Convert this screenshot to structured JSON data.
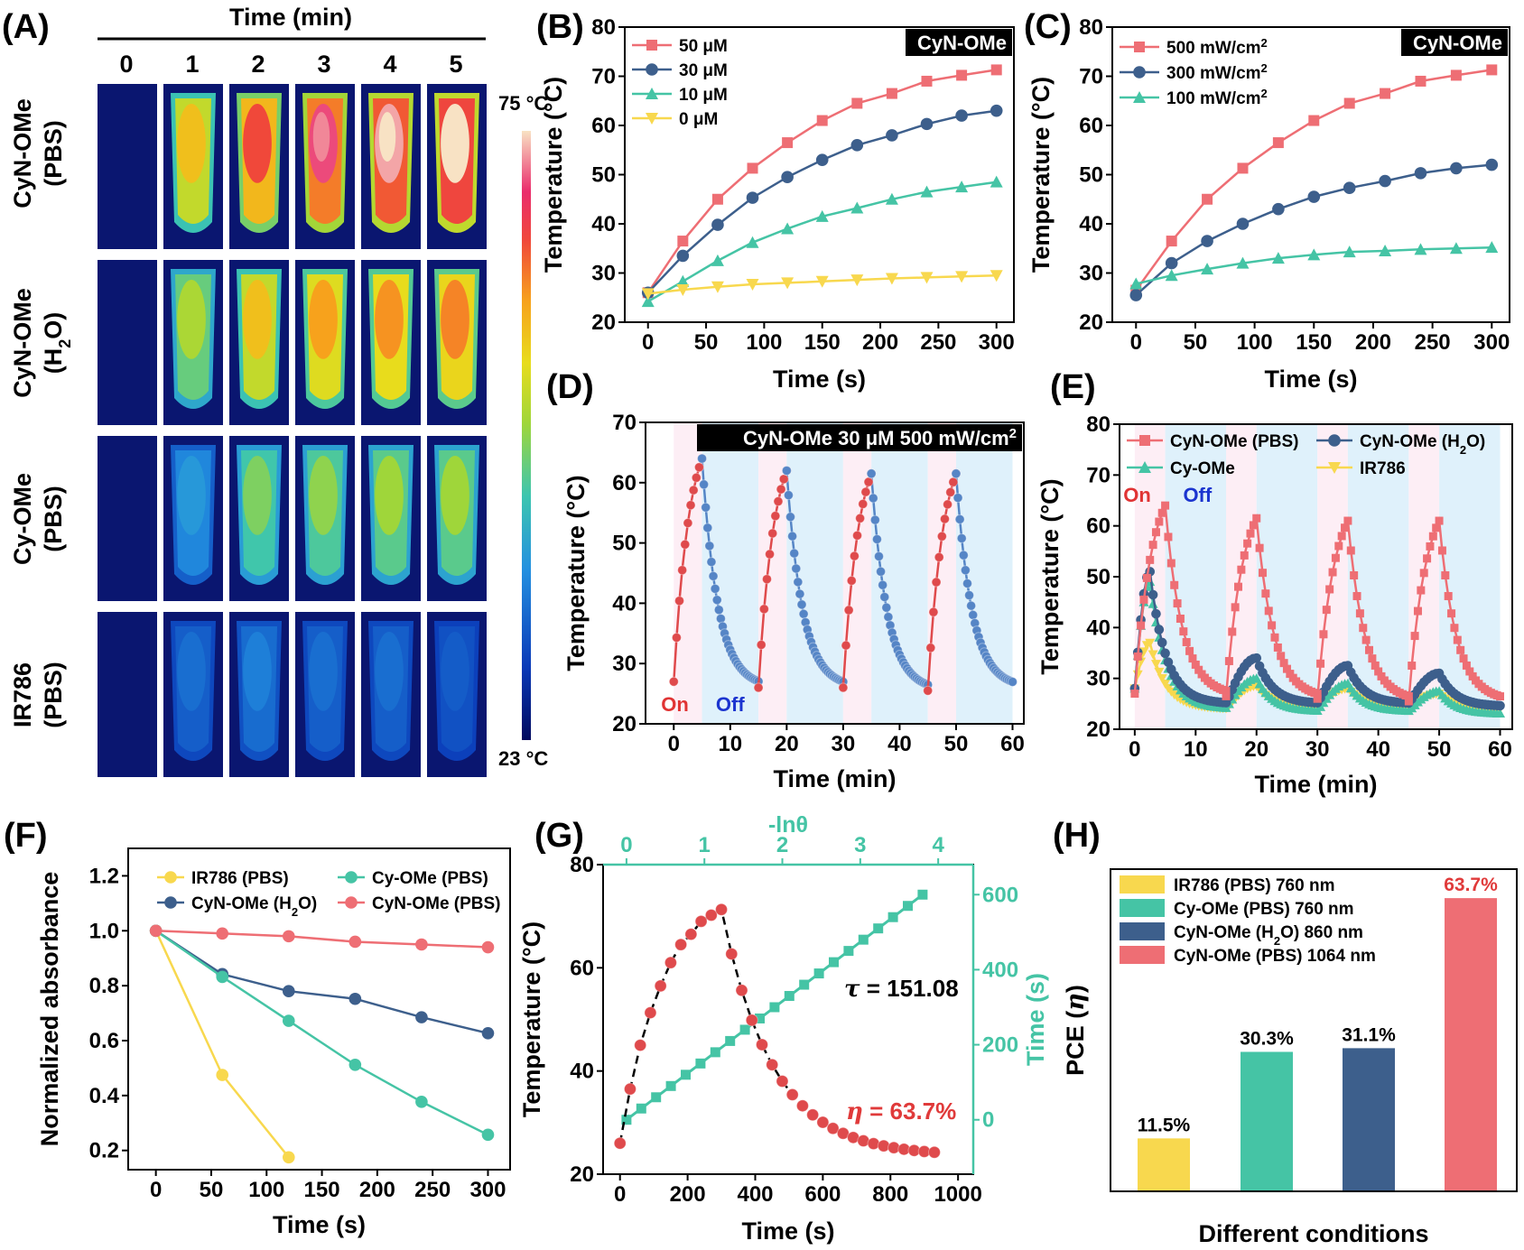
{
  "colors": {
    "red": "#ee6e74",
    "navy": "#3d5f8c",
    "teal": "#45c4a5",
    "yellow": "#f8d84e",
    "redDot": "#df4a4c",
    "blueDot": "#5585c6",
    "pinkBg": "#fdeef5",
    "blueBg": "#dff1fb",
    "eta": "#e03a3a",
    "offBlue": "#1b34cf",
    "onRed": "#e03434"
  },
  "panels": {
    "A": {
      "label": "(A)",
      "header": "Time (min)",
      "columns": [
        "0",
        "1",
        "2",
        "3",
        "4",
        "5"
      ],
      "rows": [
        {
          "line1": "CyN-OMe",
          "line2": "(PBS)",
          "line2_sub": "",
          "line2_end": "",
          "temps": [
            23,
            55,
            64,
            70,
            73,
            75
          ]
        },
        {
          "line1": "CyN-OMe",
          "line2": "(H",
          "line2_sub": "2",
          "line2_end": "O)",
          "temps": [
            25,
            47,
            55,
            58,
            59,
            60
          ]
        },
        {
          "line1": "Cy-OMe",
          "line2": "(PBS)",
          "line2_sub": "",
          "line2_end": "",
          "temps": [
            24,
            34,
            44,
            45,
            46,
            46
          ]
        },
        {
          "line1": "IR786",
          "line2": "(PBS)",
          "line2_sub": "",
          "line2_end": "",
          "temps": [
            24,
            31,
            32,
            31,
            31,
            30
          ]
        }
      ],
      "colorbar": {
        "max_label": "75 °C",
        "min_label": "23 °C",
        "max": 75,
        "min": 23
      }
    },
    "H_legend": {
      "s1": "IR786 (PBS) 760 nm",
      "s2": "Cy-OMe (PBS) 760 nm",
      "s3a": "CyN-OMe (H",
      "s3sub": "2",
      "s3b": "O)  860 nm",
      "s4": "CyN-OMe (PBS) 1064 nm"
    }
  },
  "chart_data": [
    {
      "id": "B",
      "type": "line",
      "panel_label": "(B)",
      "badge": "CyN-OMe",
      "xlabel": "Time (s)",
      "ylabel": "Temperature (°C)",
      "xlim": [
        -20,
        315
      ],
      "ylim": [
        20,
        80
      ],
      "xticks": [
        0,
        50,
        100,
        150,
        200,
        250,
        300
      ],
      "yticks": [
        20,
        30,
        40,
        50,
        60,
        70,
        80
      ],
      "x": [
        0,
        30,
        60,
        90,
        120,
        150,
        180,
        210,
        240,
        270,
        300
      ],
      "series": [
        {
          "name": "50 μM",
          "color": "red",
          "marker": "square",
          "values": [
            26.0,
            36.5,
            45.0,
            51.3,
            56.5,
            61.0,
            64.5,
            66.5,
            69.0,
            70.2,
            71.3
          ]
        },
        {
          "name": "30 μM",
          "color": "navy",
          "marker": "circle",
          "values": [
            26.0,
            33.5,
            39.8,
            45.3,
            49.5,
            53.0,
            56.0,
            58.0,
            60.3,
            62.0,
            63.0
          ]
        },
        {
          "name": "10 μM",
          "color": "teal",
          "marker": "triangle",
          "values": [
            24.2,
            28.3,
            32.5,
            36.2,
            39.0,
            41.5,
            43.2,
            45.0,
            46.5,
            47.5,
            48.5
          ]
        },
        {
          "name": "0 μM",
          "color": "yellow",
          "marker": "tridown",
          "values": [
            25.8,
            26.6,
            27.2,
            27.7,
            28.0,
            28.3,
            28.6,
            28.9,
            29.1,
            29.3,
            29.5
          ]
        }
      ]
    },
    {
      "id": "C",
      "type": "line",
      "panel_label": "(C)",
      "badge": "CyN-OMe",
      "xlabel": "Time (s)",
      "ylabel": "Temperature (°C)",
      "xlim": [
        -20,
        315
      ],
      "ylim": [
        20,
        80
      ],
      "xticks": [
        0,
        50,
        100,
        150,
        200,
        250,
        300
      ],
      "yticks": [
        20,
        30,
        40,
        50,
        60,
        70,
        80
      ],
      "x": [
        0,
        30,
        60,
        90,
        120,
        150,
        180,
        210,
        240,
        270,
        300
      ],
      "series": [
        {
          "name": "500 mW/cm",
          "sup": "2",
          "color": "red",
          "marker": "square",
          "values": [
            26.5,
            36.5,
            45.0,
            51.3,
            56.5,
            61.0,
            64.5,
            66.5,
            69.0,
            70.2,
            71.3
          ]
        },
        {
          "name": "300 mW/cm",
          "sup": "2",
          "color": "navy",
          "marker": "circle",
          "values": [
            25.5,
            32.0,
            36.5,
            40.0,
            43.0,
            45.5,
            47.3,
            48.7,
            50.3,
            51.3,
            52.0
          ]
        },
        {
          "name": "100 mW/cm",
          "sup": "2",
          "color": "teal",
          "marker": "triangle",
          "values": [
            27.8,
            29.5,
            30.8,
            32.0,
            33.0,
            33.7,
            34.3,
            34.5,
            34.8,
            35.0,
            35.2
          ]
        }
      ]
    },
    {
      "id": "D",
      "type": "line",
      "panel_label": "(D)",
      "badge": "CyN-OMe 30 μM 500 mW/cm",
      "badge_sup": "2",
      "on_label": "On",
      "off_label": "Off",
      "xlabel": "Time (min)",
      "ylabel": "Temperature (°C)",
      "xlim": [
        -5,
        62
      ],
      "ylim": [
        20,
        70
      ],
      "xticks": [
        0,
        10,
        20,
        30,
        40,
        50,
        60
      ],
      "yticks": [
        20,
        30,
        40,
        50,
        60,
        70
      ],
      "cycles": [
        {
          "on_start": 0,
          "off_start": 5,
          "end": 15,
          "peak": 64,
          "base": 27,
          "cool_to": 26
        },
        {
          "on_start": 15,
          "off_start": 20,
          "end": 30,
          "peak": 62,
          "base": 26,
          "cool_to": 26
        },
        {
          "on_start": 30,
          "off_start": 35,
          "end": 45,
          "peak": 61.5,
          "base": 26,
          "cool_to": 25.5
        },
        {
          "on_start": 45,
          "off_start": 50,
          "end": 60,
          "peak": 61.5,
          "base": 25.5,
          "cool_to": 26
        }
      ]
    },
    {
      "id": "E",
      "type": "line",
      "panel_label": "(E)",
      "on_label": "On",
      "off_label": "Off",
      "xlabel": "Time (min)",
      "ylabel": "Temperature (°C)",
      "xlim": [
        -2.5,
        62
      ],
      "ylim": [
        20,
        80
      ],
      "xticks": [
        0,
        10,
        20,
        30,
        40,
        50,
        60
      ],
      "yticks": [
        20,
        30,
        40,
        50,
        60,
        70,
        80
      ],
      "series": [
        {
          "name": "CyN-OMe (PBS)",
          "color": "red",
          "marker": "square",
          "cycles": [
            {
              "base": 27,
              "peak": 64,
              "end": 26.5
            },
            {
              "base": 26.5,
              "peak": 61.5,
              "end": 26
            },
            {
              "base": 26,
              "peak": 61,
              "end": 25.5
            },
            {
              "base": 25.5,
              "peak": 61,
              "end": 25.5
            }
          ]
        },
        {
          "name": "CyN-OMe (H",
          "sub": "2",
          "name_end": "O)",
          "color": "navy",
          "marker": "circle",
          "cycles": [
            {
              "base": 28,
              "peak": 51,
              "end": 25
            },
            {
              "base": 25,
              "peak": 34,
              "end": 25
            },
            {
              "base": 25,
              "peak": 32.5,
              "end": 25
            },
            {
              "base": 25,
              "peak": 31,
              "end": 24.5
            }
          ]
        },
        {
          "name": "Cy-OMe",
          "color": "teal",
          "marker": "triangle",
          "cycles": [
            {
              "base": 28,
              "peak": 49,
              "end": 24
            },
            {
              "base": 24,
              "peak": 30,
              "end": 23.5
            },
            {
              "base": 23.5,
              "peak": 29,
              "end": 23.5
            },
            {
              "base": 23.5,
              "peak": 27.5,
              "end": 23
            }
          ]
        },
        {
          "name": "IR786",
          "color": "yellow",
          "marker": "tridown",
          "cycles": [
            {
              "base": 28,
              "peak": 37,
              "end": 24
            },
            {
              "base": 24,
              "peak": 28.5,
              "end": 24.5
            },
            {
              "base": 24.5,
              "peak": 28,
              "end": 24.5
            },
            {
              "base": 24.5,
              "peak": 27,
              "end": 24
            }
          ]
        }
      ]
    },
    {
      "id": "F",
      "type": "line",
      "panel_label": "(F)",
      "xlabel": "Time (s)",
      "ylabel": "Normalized absorbance",
      "xlim": [
        -25,
        320
      ],
      "ylim": [
        0.13,
        1.3
      ],
      "xticks": [
        0,
        50,
        100,
        150,
        200,
        250,
        300
      ],
      "yticks": [
        0.2,
        0.4,
        0.6,
        0.8,
        1.0,
        1.2
      ],
      "series": [
        {
          "name": "IR786 (PBS)",
          "color": "yellow",
          "x": [
            0,
            60,
            120
          ],
          "values": [
            1.0,
            0.475,
            0.175
          ]
        },
        {
          "name": "CyN-OMe (H",
          "sub": "2",
          "name_end": "O)",
          "color": "navy",
          "x": [
            0,
            60,
            120,
            180,
            240,
            300
          ],
          "values": [
            1.0,
            0.842,
            0.78,
            0.752,
            0.685,
            0.627
          ]
        },
        {
          "name": "Cy-OMe (PBS)",
          "color": "teal",
          "x": [
            0,
            60,
            120,
            180,
            240,
            300
          ],
          "values": [
            1.0,
            0.832,
            0.672,
            0.512,
            0.377,
            0.257
          ]
        },
        {
          "name": "CyN-OMe (PBS)",
          "color": "red",
          "x": [
            0,
            60,
            120,
            180,
            240,
            300
          ],
          "values": [
            1.0,
            0.99,
            0.98,
            0.96,
            0.95,
            0.94
          ]
        }
      ]
    },
    {
      "id": "G",
      "type": "scatter",
      "panel_label": "(G)",
      "xlabel": "Time (s)",
      "ylabel": "Temperature (°C)",
      "x2label": "-lnθ",
      "y2label": "Time (s)",
      "xlim": [
        -50,
        1045
      ],
      "ylim": [
        20,
        80
      ],
      "x2lim": [
        -0.3,
        4.45
      ],
      "y2lim": [
        -145,
        680
      ],
      "xticks": [
        0,
        200,
        400,
        600,
        800,
        1000
      ],
      "yticks": [
        20,
        40,
        60,
        80
      ],
      "x2ticks": [
        0,
        1,
        2,
        3,
        4
      ],
      "y2ticks": [
        0,
        200,
        400,
        600
      ],
      "tau_symbol": "τ",
      "tau_text": " = 151.08",
      "eta_symbol": "η",
      "eta_text": " = 63.7%",
      "heating": {
        "x": [
          0,
          30,
          60,
          90,
          120,
          150,
          180,
          210,
          240,
          270,
          300
        ],
        "values": [
          26.0,
          36.5,
          45.0,
          51.3,
          56.5,
          61.0,
          64.5,
          66.5,
          69.0,
          70.2,
          71.3
        ]
      },
      "cooling": {
        "x_start": 300,
        "step": 30,
        "count": 21,
        "Tmax": 71.3,
        "Tamb": 23.5,
        "tau": 151.08
      },
      "fit_line": {
        "x": [
          0.0,
          3.8
        ],
        "values": [
          0,
          600
        ]
      }
    },
    {
      "id": "H",
      "type": "bar",
      "panel_label": "(H)",
      "xlabel": "Different conditions",
      "ylabel": "PCE (η)",
      "ylim": [
        0,
        70
      ],
      "categories": [
        "IR786 (PBS)",
        "Cy-OMe (PBS)",
        "CyN-OMe (H2O)",
        "CyN-OMe (PBS)"
      ],
      "values": [
        11.5,
        30.3,
        31.1,
        63.7
      ],
      "labels": [
        "11.5%",
        "30.3%",
        "31.1%",
        "63.7%"
      ],
      "colors": [
        "yellow",
        "teal",
        "navy",
        "red"
      ]
    }
  ]
}
